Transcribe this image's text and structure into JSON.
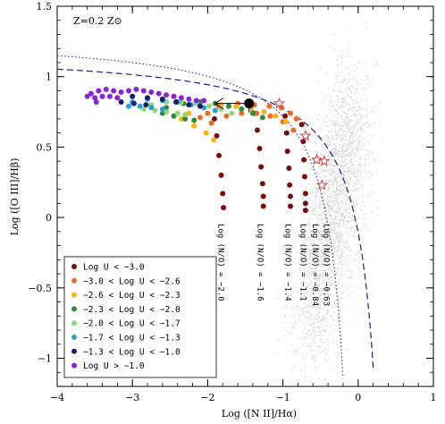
{
  "chart_data": {
    "type": "scatter",
    "title": "",
    "annotation": "Z=0.2 Z⊙",
    "xlabel": "Log ([N II]/Hα)",
    "ylabel": "Log ([O III]/Hβ)",
    "xlim": [
      -4,
      1
    ],
    "ylim": [
      -1.2,
      1.5
    ],
    "xticks": [
      -4,
      -3,
      -2,
      -1,
      0,
      1
    ],
    "xtick_labels": [
      "−4",
      "−3",
      "−2",
      "−1",
      "0",
      "1"
    ],
    "yticks": [
      -1,
      -0.5,
      0,
      0.5,
      1,
      1.5
    ],
    "ytick_labels": [
      "−1",
      "−0.5",
      "0",
      "0.5",
      "1",
      "1.5"
    ],
    "grid": false,
    "legend_position": "bottom-left",
    "background_population": {
      "color": "#cfcfcf",
      "description_points": [
        {
          "x": -0.35,
          "y": -0.1
        },
        {
          "x": -0.25,
          "y": 0.3
        },
        {
          "x": -0.1,
          "y": 0.6
        }
      ]
    },
    "series": [
      {
        "name": "Log U < −3.0",
        "color": "#7a0b0b",
        "points": [
          [
            -1.91,
            0.7
          ],
          [
            -1.88,
            0.58
          ],
          [
            -1.85,
            0.44
          ],
          [
            -1.82,
            0.3
          ],
          [
            -1.8,
            0.17
          ],
          [
            -1.79,
            0.07
          ],
          [
            -1.37,
            0.74
          ],
          [
            -1.34,
            0.62
          ],
          [
            -1.31,
            0.49
          ],
          [
            -1.29,
            0.36
          ],
          [
            -1.27,
            0.24
          ],
          [
            -1.26,
            0.15
          ],
          [
            -1.26,
            0.08
          ],
          [
            -0.97,
            0.72
          ],
          [
            -0.95,
            0.6
          ],
          [
            -0.94,
            0.47
          ],
          [
            -0.92,
            0.35
          ],
          [
            -0.91,
            0.23
          ],
          [
            -0.9,
            0.15
          ],
          [
            -0.9,
            0.08
          ],
          [
            -0.75,
            0.66
          ],
          [
            -0.73,
            0.54
          ],
          [
            -0.72,
            0.41
          ],
          [
            -0.71,
            0.29
          ],
          [
            -0.7,
            0.17
          ],
          [
            -0.7,
            0.1
          ],
          [
            -0.7,
            0.05
          ]
        ]
      },
      {
        "name": "−3.0 < Log U < −2.6",
        "color": "#ee6a24",
        "points": [
          [
            -2.0,
            0.74
          ],
          [
            -1.85,
            0.79
          ],
          [
            -1.6,
            0.81
          ],
          [
            -1.38,
            0.8
          ],
          [
            -1.18,
            0.79
          ],
          [
            -1.02,
            0.78
          ],
          [
            -0.9,
            0.74
          ],
          [
            -0.82,
            0.7
          ],
          [
            -2.1,
            0.71
          ],
          [
            -1.95,
            0.67
          ],
          [
            -1.75,
            0.72
          ],
          [
            -1.55,
            0.74
          ],
          [
            -1.35,
            0.74
          ],
          [
            -1.17,
            0.72
          ],
          [
            -1.0,
            0.68
          ],
          [
            -0.86,
            0.62
          ]
        ]
      },
      {
        "name": "−2.6 < Log U < −2.3",
        "color": "#f7b21c",
        "points": [
          [
            -2.25,
            0.74
          ],
          [
            -2.05,
            0.78
          ],
          [
            -1.82,
            0.8
          ],
          [
            -1.62,
            0.79
          ],
          [
            -1.42,
            0.77
          ],
          [
            -1.25,
            0.75
          ],
          [
            -1.1,
            0.72
          ],
          [
            -0.96,
            0.68
          ],
          [
            -2.35,
            0.7
          ],
          [
            -2.18,
            0.65
          ],
          [
            -2.02,
            0.6
          ],
          [
            -1.92,
            0.55
          ]
        ]
      },
      {
        "name": "−2.3 < Log U < −2.0",
        "color": "#2e8b3a",
        "points": [
          [
            -2.55,
            0.78
          ],
          [
            -2.32,
            0.81
          ],
          [
            -2.1,
            0.82
          ],
          [
            -1.9,
            0.81
          ],
          [
            -1.72,
            0.79
          ],
          [
            -1.55,
            0.77
          ],
          [
            -1.4,
            0.74
          ],
          [
            -1.27,
            0.71
          ],
          [
            -2.6,
            0.74
          ],
          [
            -2.45,
            0.72
          ],
          [
            -2.3,
            0.7
          ],
          [
            -2.18,
            0.69
          ]
        ]
      },
      {
        "name": "−2.0 < Log U < −1.7",
        "color": "#8fd67d",
        "points": [
          [
            -2.75,
            0.8
          ],
          [
            -2.55,
            0.82
          ],
          [
            -2.35,
            0.82
          ],
          [
            -2.15,
            0.81
          ],
          [
            -1.98,
            0.79
          ],
          [
            -1.82,
            0.77
          ],
          [
            -1.68,
            0.74
          ],
          [
            -2.85,
            0.77
          ],
          [
            -2.7,
            0.76
          ],
          [
            -2.55,
            0.75
          ],
          [
            -2.4,
            0.74
          ],
          [
            -2.3,
            0.73
          ]
        ]
      },
      {
        "name": "−1.7 < Log U < −1.3",
        "color": "#2b9fd1",
        "points": [
          [
            -3.0,
            0.82
          ],
          [
            -2.8,
            0.84
          ],
          [
            -2.6,
            0.83
          ],
          [
            -2.4,
            0.82
          ],
          [
            -2.22,
            0.8
          ],
          [
            -2.05,
            0.78
          ],
          [
            -1.9,
            0.76
          ],
          [
            -3.05,
            0.79
          ],
          [
            -2.9,
            0.79
          ],
          [
            -2.75,
            0.78
          ],
          [
            -2.6,
            0.77
          ]
        ]
      },
      {
        "name": "−1.3 < Log U < −1.0",
        "color": "#1a1a6e",
        "points": [
          [
            -3.2,
            0.85
          ],
          [
            -3.0,
            0.86
          ],
          [
            -2.8,
            0.85
          ],
          [
            -2.6,
            0.84
          ],
          [
            -2.42,
            0.82
          ],
          [
            -2.25,
            0.8
          ],
          [
            -2.1,
            0.79
          ],
          [
            -3.15,
            0.82
          ],
          [
            -2.98,
            0.81
          ],
          [
            -2.82,
            0.8
          ]
        ]
      },
      {
        "name": "Log U > −1.0",
        "color": "#8a22d8",
        "points": [
          [
            -3.55,
            0.88
          ],
          [
            -3.45,
            0.9
          ],
          [
            -3.35,
            0.91
          ],
          [
            -3.25,
            0.9
          ],
          [
            -3.15,
            0.89
          ],
          [
            -3.05,
            0.9
          ],
          [
            -2.95,
            0.91
          ],
          [
            -2.85,
            0.9
          ],
          [
            -2.75,
            0.89
          ],
          [
            -2.65,
            0.88
          ],
          [
            -2.55,
            0.87
          ],
          [
            -2.45,
            0.86
          ],
          [
            -2.35,
            0.85
          ],
          [
            -2.25,
            0.84
          ],
          [
            -2.15,
            0.83
          ],
          [
            -2.05,
            0.83
          ],
          [
            -3.5,
            0.85
          ],
          [
            -3.4,
            0.86
          ],
          [
            -3.3,
            0.86
          ],
          [
            -3.2,
            0.85
          ],
          [
            -3.6,
            0.86
          ],
          [
            -3.48,
            0.82
          ]
        ]
      }
    ],
    "stars": {
      "color": "#d23b3b",
      "points": [
        [
          -1.05,
          0.81
        ],
        [
          -0.7,
          0.58
        ],
        [
          -0.55,
          0.41
        ],
        [
          -0.45,
          0.4
        ],
        [
          -0.48,
          0.23
        ]
      ]
    },
    "big_point": {
      "x": -1.45,
      "y": 0.81,
      "arrow_to_x": -1.9
    },
    "track_labels": [
      {
        "text": "Log (N/O) = −2.0",
        "x": -1.82
      },
      {
        "text": "Log (N/O) = −1.6",
        "x": -1.3
      },
      {
        "text": "Log (N/O) = −1.4",
        "x": -0.93
      },
      {
        "text": "Log (N/O) = −1.1",
        "x": -0.73
      },
      {
        "text": "Log (N/O) = −0.84",
        "x": -0.57
      },
      {
        "text": "Log (N/O) = −0.63",
        "x": -0.42
      }
    ],
    "curves": [
      {
        "name": "dashed",
        "color": "#1c1c8c",
        "style": "dashed"
      },
      {
        "name": "dotted",
        "color": "#1c1c8c",
        "style": "dotted"
      }
    ]
  }
}
